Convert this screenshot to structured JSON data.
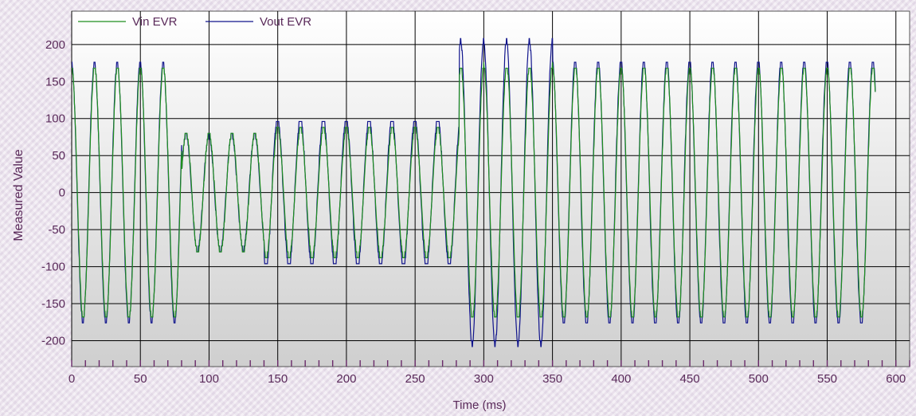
{
  "chart_data": {
    "type": "line",
    "title": "",
    "xlabel": "Time (ms)",
    "ylabel": "Measured Value",
    "xlim": [
      0,
      610
    ],
    "ylim": [
      -235,
      245
    ],
    "x_ticks": [
      0,
      50,
      100,
      150,
      200,
      250,
      300,
      350,
      400,
      450,
      500,
      550,
      600
    ],
    "y_ticks": [
      200,
      150,
      100,
      50,
      0,
      -50,
      -100,
      -150,
      -200
    ],
    "grid": true,
    "legend": "top-left",
    "colors": {
      "vin": "#1f8f1f",
      "vout": "#10148c",
      "grid": "#000000",
      "plot_top": "#ffffff",
      "plot_bottom": "#cfcfcf",
      "text": "#5a2a5a"
    },
    "signal": {
      "frequency_hz": 60,
      "x_end_ms": 585,
      "segments": [
        {
          "t_start": 0,
          "t_end": 80,
          "vin_amplitude": 170,
          "vout_amplitude": 175
        },
        {
          "t_start": 80,
          "t_end": 140,
          "vin_amplitude": 80,
          "vout_amplitude": 78
        },
        {
          "t_start": 140,
          "t_end": 282,
          "vin_amplitude": 88,
          "vout_amplitude": 100
        },
        {
          "t_start": 282,
          "t_end": 350,
          "vin_amplitude": 172,
          "vout_amplitude": 205
        },
        {
          "t_start": 350,
          "t_end": 585,
          "vin_amplitude": 170,
          "vout_amplitude": 178
        }
      ]
    },
    "series": [
      {
        "name": "Vin EVR"
      },
      {
        "name": "Vout EVR"
      }
    ]
  }
}
